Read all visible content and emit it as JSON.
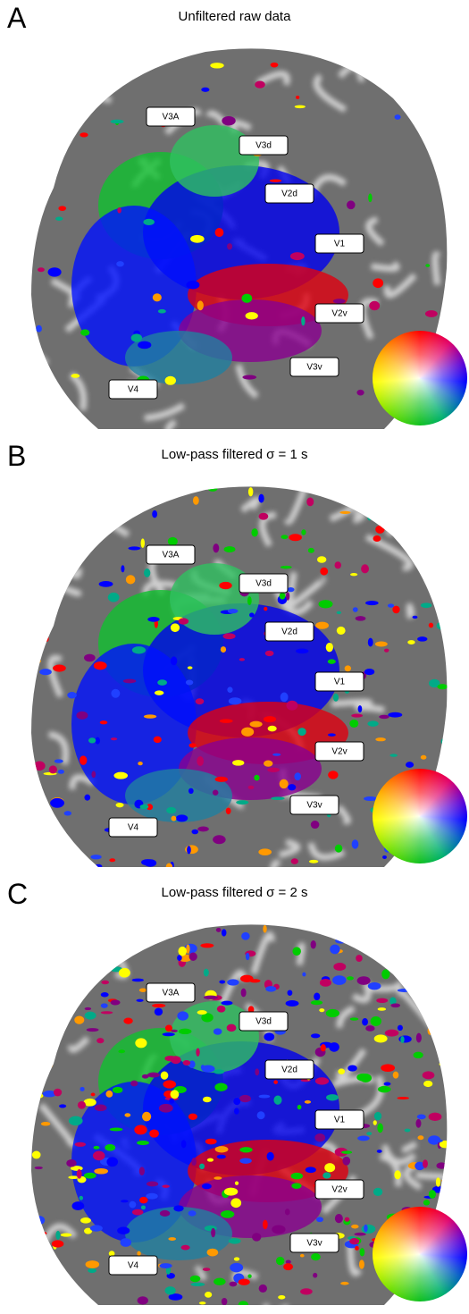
{
  "panels": [
    {
      "letter": "A",
      "title": "Unfiltered raw data",
      "labels": [
        "V3A",
        "V3d",
        "V2d",
        "V1",
        "V2v",
        "V3v",
        "V4"
      ]
    },
    {
      "letter": "B",
      "title": "Low-pass filtered σ = 1 s",
      "labels": [
        "V3A",
        "V3d",
        "V2d",
        "V1",
        "V2v",
        "V3v",
        "V4"
      ]
    },
    {
      "letter": "C",
      "title": "Low-pass filtered σ = 2 s",
      "labels": [
        "V3A",
        "V3d",
        "V2d",
        "V1",
        "V2v",
        "V3v",
        "V4"
      ]
    }
  ]
}
